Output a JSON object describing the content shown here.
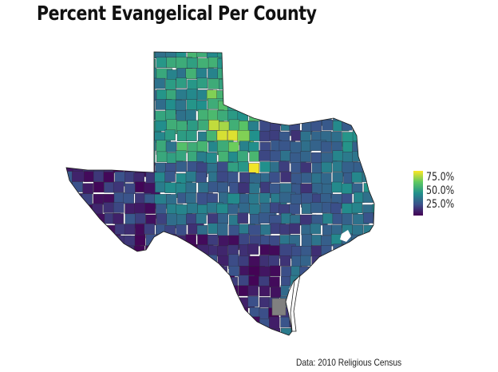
{
  "title": "Percent Evangelical Per County",
  "legend": {
    "ticks": [
      "75.0%",
      "50.0%",
      "25.0%"
    ],
    "colors": [
      "#440154",
      "#3b528b",
      "#21918c",
      "#5ec962",
      "#fde725"
    ]
  },
  "caption": "Data: 2010 Religious Census",
  "missing_color": "#808080"
}
